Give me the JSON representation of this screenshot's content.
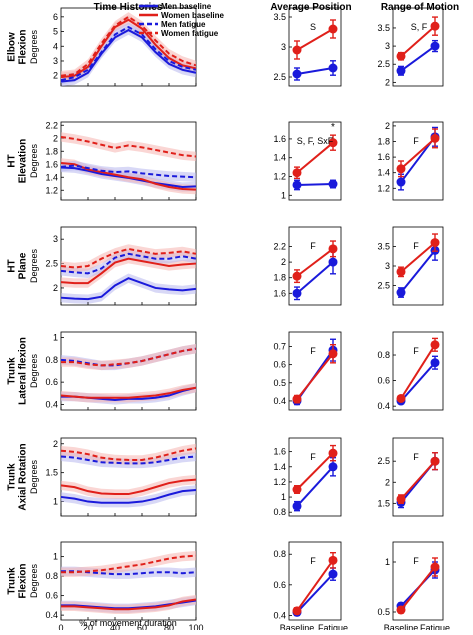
{
  "columns": [
    "Time Histories",
    "Average Position",
    "Range of Motion"
  ],
  "rows": [
    {
      "label": [
        "Elbow",
        "Flexion"
      ]
    },
    {
      "label": [
        "HT",
        "Elevation"
      ]
    },
    {
      "label": [
        "HT",
        "Plane"
      ]
    },
    {
      "label": [
        "Trunk",
        "Lateral flexion"
      ]
    },
    {
      "label": [
        "Trunk",
        "Axial Rotation"
      ]
    },
    {
      "label": [
        "Trunk",
        "Flexion"
      ]
    }
  ],
  "ylabel": "Degrees",
  "time_xlabel": "% of movement duration",
  "time_xticks": [
    0,
    20,
    40,
    60,
    80,
    100
  ],
  "group_xticks": [
    "Baseline",
    "Fatigue"
  ],
  "legend": [
    {
      "label": "Men baseline",
      "color": "#1a1adb",
      "dash": false
    },
    {
      "label": "Women baseline",
      "color": "#e0201a",
      "dash": false
    },
    {
      "label": "Men fatigue",
      "color": "#1a1adb",
      "dash": true
    },
    {
      "label": "Women fatigue",
      "color": "#e0201a",
      "dash": true
    }
  ],
  "colors": {
    "men": "#1a1adb",
    "women": "#e0201a",
    "men_band": "#b8b8ee",
    "women_band": "#f5b5b0"
  },
  "chart_data": [
    {
      "type": "line",
      "row": "Elbow Flexion",
      "panel": "Time Histories",
      "ylim": [
        1.3,
        6.6
      ],
      "yticks": [
        2,
        3,
        4,
        5,
        6
      ],
      "x": [
        0,
        10,
        20,
        30,
        40,
        50,
        60,
        70,
        80,
        90,
        100
      ],
      "series": [
        {
          "name": "Men baseline",
          "values": [
            1.6,
            1.7,
            2.2,
            3.5,
            4.6,
            5.1,
            4.6,
            3.6,
            2.8,
            2.4,
            2.2
          ]
        },
        {
          "name": "Women baseline",
          "values": [
            1.9,
            2.0,
            2.6,
            4.0,
            5.3,
            5.8,
            5.2,
            4.1,
            3.2,
            2.7,
            2.5
          ]
        },
        {
          "name": "Men fatigue",
          "values": [
            1.7,
            1.9,
            2.4,
            3.6,
            4.8,
            5.3,
            4.8,
            3.8,
            3.0,
            2.6,
            2.4
          ]
        },
        {
          "name": "Women fatigue",
          "values": [
            2.0,
            2.1,
            2.8,
            4.2,
            5.4,
            6.0,
            5.4,
            4.4,
            3.5,
            3.0,
            2.7
          ]
        }
      ]
    },
    {
      "type": "line",
      "row": "HT Elevation",
      "panel": "Time Histories",
      "ylim": [
        1.05,
        2.25
      ],
      "yticks": [
        1.2,
        1.4,
        1.6,
        1.8,
        2,
        2.2
      ],
      "x": [
        0,
        10,
        20,
        30,
        40,
        50,
        60,
        70,
        80,
        90,
        100
      ],
      "series": [
        {
          "name": "Men baseline",
          "values": [
            1.55,
            1.54,
            1.5,
            1.45,
            1.42,
            1.39,
            1.35,
            1.31,
            1.28,
            1.25,
            1.26
          ]
        },
        {
          "name": "Women baseline",
          "values": [
            1.62,
            1.6,
            1.52,
            1.48,
            1.44,
            1.4,
            1.37,
            1.3,
            1.25,
            1.22,
            1.21
          ]
        },
        {
          "name": "Men fatigue",
          "values": [
            1.56,
            1.58,
            1.54,
            1.5,
            1.48,
            1.49,
            1.46,
            1.44,
            1.42,
            1.41,
            1.4
          ]
        },
        {
          "name": "Women fatigue",
          "values": [
            2.02,
            1.99,
            1.95,
            1.9,
            1.85,
            1.89,
            1.86,
            1.82,
            1.78,
            1.74,
            1.72
          ]
        }
      ]
    },
    {
      "type": "line",
      "row": "HT Plane",
      "panel": "Time Histories",
      "ylim": [
        1.65,
        3.25
      ],
      "yticks": [
        2,
        2.5,
        3
      ],
      "x": [
        0,
        10,
        20,
        30,
        40,
        50,
        60,
        70,
        80,
        90,
        100
      ],
      "series": [
        {
          "name": "Men baseline",
          "values": [
            1.8,
            1.78,
            1.77,
            1.82,
            2.05,
            2.2,
            2.1,
            2.0,
            1.97,
            1.95,
            1.98
          ]
        },
        {
          "name": "Women baseline",
          "values": [
            2.12,
            2.1,
            2.1,
            2.3,
            2.52,
            2.6,
            2.55,
            2.5,
            2.45,
            2.48,
            2.5
          ]
        },
        {
          "name": "Men fatigue",
          "values": [
            2.35,
            2.32,
            2.3,
            2.4,
            2.62,
            2.7,
            2.65,
            2.6,
            2.6,
            2.65,
            2.6
          ]
        },
        {
          "name": "Women fatigue",
          "values": [
            2.45,
            2.42,
            2.45,
            2.6,
            2.72,
            2.8,
            2.75,
            2.7,
            2.72,
            2.75,
            2.7
          ]
        }
      ]
    },
    {
      "type": "line",
      "row": "Trunk Lateral flexion",
      "panel": "Time Histories",
      "ylim": [
        0.35,
        1.05
      ],
      "yticks": [
        0.4,
        0.6,
        0.8,
        1
      ],
      "x": [
        0,
        10,
        20,
        30,
        40,
        50,
        60,
        70,
        80,
        90,
        100
      ],
      "series": [
        {
          "name": "Men baseline",
          "values": [
            0.47,
            0.47,
            0.46,
            0.45,
            0.44,
            0.45,
            0.45,
            0.46,
            0.48,
            0.52,
            0.55
          ]
        },
        {
          "name": "Women baseline",
          "values": [
            0.48,
            0.47,
            0.46,
            0.46,
            0.46,
            0.46,
            0.47,
            0.48,
            0.5,
            0.53,
            0.55
          ]
        },
        {
          "name": "Men fatigue",
          "values": [
            0.8,
            0.79,
            0.77,
            0.75,
            0.75,
            0.77,
            0.79,
            0.82,
            0.85,
            0.88,
            0.9
          ]
        },
        {
          "name": "Women fatigue",
          "values": [
            0.78,
            0.78,
            0.76,
            0.75,
            0.76,
            0.77,
            0.79,
            0.82,
            0.85,
            0.88,
            0.9
          ]
        }
      ]
    },
    {
      "type": "line",
      "row": "Trunk Axial Rotation",
      "panel": "Time Histories",
      "ylim": [
        0.75,
        2.1
      ],
      "yticks": [
        1,
        1.5,
        2
      ],
      "x": [
        0,
        10,
        20,
        30,
        40,
        50,
        60,
        70,
        80,
        90,
        100
      ],
      "series": [
        {
          "name": "Men baseline",
          "values": [
            1.08,
            1.05,
            1.0,
            0.98,
            0.98,
            0.98,
            1.0,
            1.05,
            1.12,
            1.18,
            1.2
          ]
        },
        {
          "name": "Women baseline",
          "values": [
            1.28,
            1.25,
            1.18,
            1.14,
            1.13,
            1.13,
            1.18,
            1.25,
            1.32,
            1.36,
            1.38
          ]
        },
        {
          "name": "Men fatigue",
          "values": [
            1.78,
            1.76,
            1.72,
            1.68,
            1.67,
            1.66,
            1.66,
            1.68,
            1.72,
            1.76,
            1.78
          ]
        },
        {
          "name": "Women fatigue",
          "values": [
            1.88,
            1.86,
            1.82,
            1.76,
            1.73,
            1.72,
            1.72,
            1.76,
            1.82,
            1.88,
            1.92
          ]
        }
      ]
    },
    {
      "type": "line",
      "row": "Trunk Flexion",
      "panel": "Time Histories",
      "ylim": [
        0.35,
        1.15
      ],
      "yticks": [
        0.4,
        0.6,
        0.8,
        1
      ],
      "x": [
        0,
        10,
        20,
        30,
        40,
        50,
        60,
        70,
        80,
        90,
        100
      ],
      "series": [
        {
          "name": "Men baseline",
          "values": [
            0.5,
            0.5,
            0.49,
            0.48,
            0.47,
            0.47,
            0.48,
            0.49,
            0.51,
            0.53,
            0.55
          ]
        },
        {
          "name": "Women baseline",
          "values": [
            0.49,
            0.49,
            0.48,
            0.47,
            0.46,
            0.46,
            0.47,
            0.48,
            0.5,
            0.54,
            0.56
          ]
        },
        {
          "name": "Men fatigue",
          "values": [
            0.85,
            0.85,
            0.84,
            0.83,
            0.82,
            0.82,
            0.83,
            0.84,
            0.84,
            0.83,
            0.84
          ]
        },
        {
          "name": "Women fatigue",
          "values": [
            0.84,
            0.84,
            0.85,
            0.86,
            0.88,
            0.9,
            0.92,
            0.95,
            0.98,
            1.0,
            1.01
          ]
        }
      ]
    },
    {
      "type": "line",
      "row": "Elbow Flexion",
      "panel": "Average Position",
      "categories": [
        "Baseline",
        "Fatigue"
      ],
      "ylim": [
        2.35,
        3.65
      ],
      "yticks": [
        2.5,
        3,
        3.5
      ],
      "annotation": "S",
      "series": [
        {
          "name": "Men",
          "values": [
            2.55,
            2.65
          ],
          "err": [
            0.1,
            0.12
          ]
        },
        {
          "name": "Women",
          "values": [
            2.95,
            3.3
          ],
          "err": [
            0.15,
            0.15
          ]
        }
      ]
    },
    {
      "type": "line",
      "row": "HT Elevation",
      "panel": "Average Position",
      "categories": [
        "Baseline",
        "Fatigue"
      ],
      "ylim": [
        0.95,
        1.78
      ],
      "yticks": [
        1,
        1.2,
        1.4,
        1.6
      ],
      "annotation": "S, F, SxF",
      "star": "*",
      "series": [
        {
          "name": "Men",
          "values": [
            1.11,
            1.12
          ],
          "err": [
            0.05,
            0.04
          ]
        },
        {
          "name": "Women",
          "values": [
            1.24,
            1.56
          ],
          "err": [
            0.06,
            0.08
          ]
        }
      ]
    },
    {
      "type": "line",
      "row": "HT Plane",
      "panel": "Average Position",
      "categories": [
        "Baseline",
        "Fatigue"
      ],
      "ylim": [
        1.45,
        2.45
      ],
      "yticks": [
        1.6,
        1.8,
        2,
        2.2
      ],
      "annotation": "F",
      "series": [
        {
          "name": "Men",
          "values": [
            1.6,
            2.0
          ],
          "err": [
            0.08,
            0.15
          ]
        },
        {
          "name": "Women",
          "values": [
            1.82,
            2.17
          ],
          "err": [
            0.08,
            0.1
          ]
        }
      ]
    },
    {
      "type": "line",
      "row": "Trunk Lateral flexion",
      "panel": "Average Position",
      "categories": [
        "Baseline",
        "Fatigue"
      ],
      "ylim": [
        0.35,
        0.78
      ],
      "yticks": [
        0.4,
        0.5,
        0.6,
        0.7
      ],
      "annotation": "F",
      "series": [
        {
          "name": "Men",
          "values": [
            0.4,
            0.68
          ],
          "err": [
            0.02,
            0.06
          ]
        },
        {
          "name": "Women",
          "values": [
            0.41,
            0.66
          ],
          "err": [
            0.02,
            0.05
          ]
        }
      ]
    },
    {
      "type": "line",
      "row": "Trunk Axial Rotation",
      "panel": "Average Position",
      "categories": [
        "Baseline",
        "Fatigue"
      ],
      "ylim": [
        0.75,
        1.78
      ],
      "yticks": [
        0.8,
        1,
        1.2,
        1.4,
        1.6
      ],
      "annotation": "F",
      "series": [
        {
          "name": "Men",
          "values": [
            0.88,
            1.4
          ],
          "err": [
            0.06,
            0.12
          ]
        },
        {
          "name": "Women",
          "values": [
            1.1,
            1.58
          ],
          "err": [
            0.05,
            0.1
          ]
        }
      ]
    },
    {
      "type": "line",
      "row": "Trunk Flexion",
      "panel": "Average Position",
      "categories": [
        "Baseline",
        "Fatigue"
      ],
      "ylim": [
        0.37,
        0.88
      ],
      "yticks": [
        0.4,
        0.6,
        0.8
      ],
      "annotation": "F",
      "series": [
        {
          "name": "Men",
          "values": [
            0.42,
            0.67
          ],
          "err": [
            0.02,
            0.04
          ]
        },
        {
          "name": "Women",
          "values": [
            0.43,
            0.76
          ],
          "err": [
            0.02,
            0.05
          ]
        }
      ]
    },
    {
      "type": "line",
      "row": "Elbow Flexion",
      "panel": "Range of Motion",
      "categories": [
        "Baseline",
        "Fatigue"
      ],
      "ylim": [
        1.9,
        4.05
      ],
      "yticks": [
        2,
        2.5,
        3,
        3.5
      ],
      "annotation": "S, F",
      "series": [
        {
          "name": "Men",
          "values": [
            2.32,
            3.0
          ],
          "err": [
            0.12,
            0.15
          ]
        },
        {
          "name": "Women",
          "values": [
            2.72,
            3.55
          ],
          "err": [
            0.1,
            0.25
          ]
        }
      ]
    },
    {
      "type": "line",
      "row": "HT Elevation",
      "panel": "Range of Motion",
      "categories": [
        "Baseline",
        "Fatigue"
      ],
      "ylim": [
        1.05,
        2.05
      ],
      "yticks": [
        1.2,
        1.4,
        1.6,
        1.8,
        2
      ],
      "annotation": "F",
      "series": [
        {
          "name": "Men",
          "values": [
            1.28,
            1.86
          ],
          "err": [
            0.1,
            0.12
          ]
        },
        {
          "name": "Women",
          "values": [
            1.45,
            1.84
          ],
          "err": [
            0.1,
            0.12
          ]
        }
      ]
    },
    {
      "type": "line",
      "row": "HT Plane",
      "panel": "Range of Motion",
      "categories": [
        "Baseline",
        "Fatigue"
      ],
      "ylim": [
        2.0,
        4.0
      ],
      "yticks": [
        2.5,
        3,
        3.5
      ],
      "annotation": "F",
      "series": [
        {
          "name": "Men",
          "values": [
            2.32,
            3.4
          ],
          "err": [
            0.12,
            0.25
          ]
        },
        {
          "name": "Women",
          "values": [
            2.85,
            3.6
          ],
          "err": [
            0.12,
            0.22
          ]
        }
      ]
    },
    {
      "type": "line",
      "row": "Trunk Lateral flexion",
      "panel": "Range of Motion",
      "categories": [
        "Baseline",
        "Fatigue"
      ],
      "ylim": [
        0.37,
        0.98
      ],
      "yticks": [
        0.4,
        0.6,
        0.8
      ],
      "annotation": "F",
      "series": [
        {
          "name": "Men",
          "values": [
            0.44,
            0.74
          ],
          "err": [
            0.02,
            0.05
          ]
        },
        {
          "name": "Women",
          "values": [
            0.46,
            0.88
          ],
          "err": [
            0.02,
            0.05
          ]
        }
      ]
    },
    {
      "type": "line",
      "row": "Trunk Axial Rotation",
      "panel": "Range of Motion",
      "categories": [
        "Baseline",
        "Fatigue"
      ],
      "ylim": [
        1.2,
        3.05
      ],
      "yticks": [
        1.5,
        2,
        2.5
      ],
      "annotation": "F",
      "series": [
        {
          "name": "Men",
          "values": [
            1.52,
            2.5
          ],
          "err": [
            0.12,
            0.2
          ]
        },
        {
          "name": "Women",
          "values": [
            1.6,
            2.5
          ],
          "err": [
            0.1,
            0.2
          ]
        }
      ]
    },
    {
      "type": "line",
      "row": "Trunk Flexion",
      "panel": "Range of Motion",
      "categories": [
        "Baseline",
        "Fatigue"
      ],
      "ylim": [
        0.42,
        1.2
      ],
      "yticks": [
        0.5,
        1
      ],
      "annotation": "F",
      "series": [
        {
          "name": "Men",
          "values": [
            0.56,
            0.92
          ],
          "err": [
            0.03,
            0.08
          ]
        },
        {
          "name": "Women",
          "values": [
            0.52,
            0.95
          ],
          "err": [
            0.03,
            0.09
          ]
        }
      ]
    }
  ]
}
